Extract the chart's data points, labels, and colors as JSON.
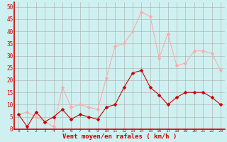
{
  "x": [
    0,
    1,
    2,
    3,
    4,
    5,
    6,
    7,
    8,
    9,
    10,
    11,
    12,
    13,
    14,
    15,
    16,
    17,
    18,
    19,
    20,
    21,
    22,
    23
  ],
  "wind_avg": [
    6,
    1,
    7,
    3,
    5,
    8,
    4,
    6,
    5,
    4,
    9,
    10,
    17,
    23,
    24,
    17,
    14,
    10,
    13,
    15,
    15,
    15,
    13,
    10
  ],
  "wind_gust": [
    6,
    7,
    5,
    3,
    1,
    17,
    9,
    10,
    9,
    8,
    21,
    34,
    35,
    40,
    48,
    46,
    29,
    39,
    26,
    27,
    32,
    32,
    31,
    24
  ],
  "bg_color": "#cff0f0",
  "grid_color": "#aaaaaa",
  "avg_color": "#cc0000",
  "gust_color": "#ffaaaa",
  "xlabel": "Vent moyen/en rafales ( km/h )",
  "xlabel_color": "#cc0000",
  "ytick_labels": [
    "0",
    "5",
    "10",
    "15",
    "20",
    "25",
    "30",
    "35",
    "40",
    "45",
    "50"
  ],
  "ytick_values": [
    0,
    5,
    10,
    15,
    20,
    25,
    30,
    35,
    40,
    45,
    50
  ],
  "ylim": [
    0,
    52
  ],
  "xlim": [
    -0.5,
    23.5
  ],
  "marker": "D",
  "marker_size": 2.5,
  "linewidth": 0.8
}
